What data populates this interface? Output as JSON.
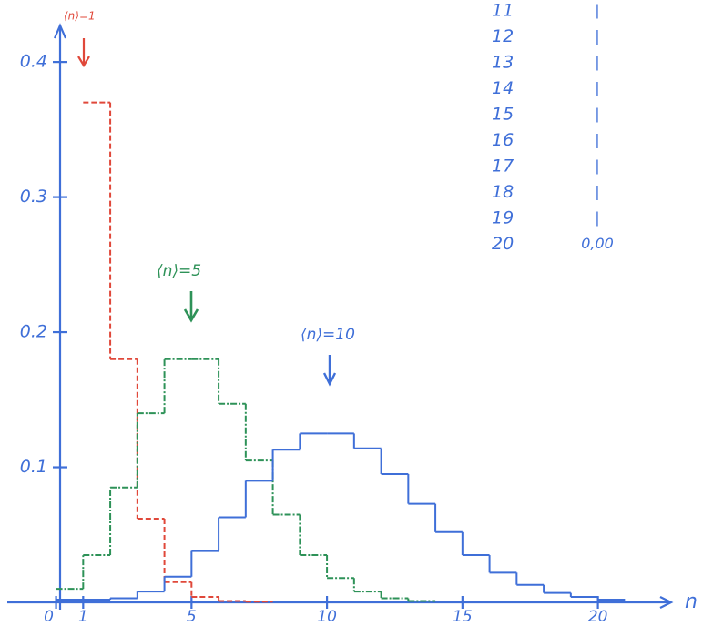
{
  "chart_data": {
    "type": "step",
    "x_label": "n",
    "xlim": [
      -1.7,
      22.4
    ],
    "ylim": [
      0,
      0.425
    ],
    "xticks": [
      0,
      1,
      5,
      10,
      15,
      20
    ],
    "yticks": [
      0.1,
      0.2,
      0.3,
      0.4
    ],
    "series": [
      {
        "name": "⟨n⟩=1",
        "color": "#e0483a",
        "dash": "6 3",
        "bins": [
          1,
          2,
          3,
          4,
          5,
          6,
          7,
          8
        ],
        "values": [
          0.37,
          0.18,
          0.062,
          0.015,
          0.004,
          0.001,
          0.0005
        ]
      },
      {
        "name": "⟨n⟩=5",
        "color": "#2e9258",
        "dash": "7 2 2 2",
        "bins": [
          0,
          1,
          2,
          3,
          4,
          5,
          6,
          7,
          8,
          9,
          10,
          11,
          12,
          13,
          14
        ],
        "values": [
          0.01,
          0.035,
          0.085,
          0.14,
          0.18,
          0.18,
          0.147,
          0.105,
          0.065,
          0.035,
          0.018,
          0.008,
          0.003,
          0.001
        ]
      },
      {
        "name": "⟨n⟩=10",
        "color": "#3f6fd8",
        "dash": "none",
        "bins": [
          0,
          1,
          2,
          3,
          4,
          5,
          6,
          7,
          8,
          9,
          10,
          11,
          12,
          13,
          14,
          15,
          16,
          17,
          18,
          19,
          20,
          21
        ],
        "values": [
          0.002,
          0.002,
          0.003,
          0.008,
          0.019,
          0.038,
          0.063,
          0.09,
          0.113,
          0.125,
          0.125,
          0.114,
          0.095,
          0.073,
          0.052,
          0.035,
          0.022,
          0.013,
          0.007,
          0.004,
          0.002
        ]
      }
    ]
  },
  "table": {
    "rows": [
      [
        "11",
        "|"
      ],
      [
        "12",
        "|"
      ],
      [
        "13",
        "|"
      ],
      [
        "14",
        "|"
      ],
      [
        "15",
        "|"
      ],
      [
        "16",
        "|"
      ],
      [
        "17",
        "|"
      ],
      [
        "18",
        "|"
      ],
      [
        "19",
        "|"
      ],
      [
        "20",
        "0,00"
      ]
    ]
  }
}
